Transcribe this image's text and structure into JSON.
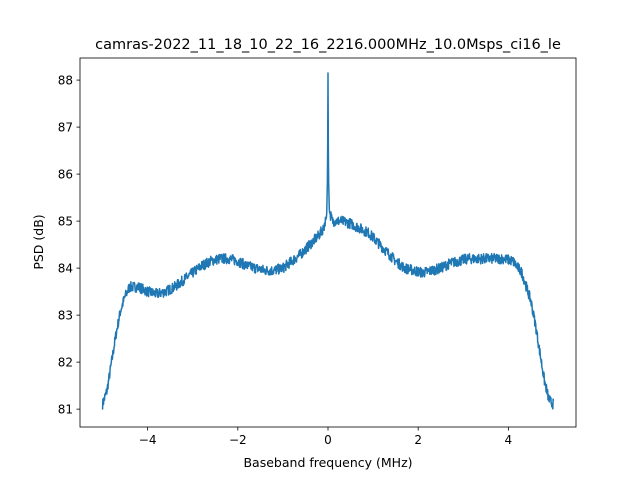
{
  "chart_data": {
    "type": "line",
    "title": "camras-2022_11_18_10_22_16_2216.000MHz_10.0Msps_ci16_le",
    "xlabel": "Baseband frequency (MHz)",
    "ylabel": "PSD (dB)",
    "xlim": [
      -5.5,
      5.5
    ],
    "ylim": [
      80.62,
      88.47
    ],
    "xticks": [
      -4,
      -2,
      0,
      2,
      4
    ],
    "xtick_labels": [
      "−4",
      "−2",
      "0",
      "2",
      "4"
    ],
    "yticks": [
      81,
      82,
      83,
      84,
      85,
      86,
      87,
      88
    ],
    "ytick_labels": [
      "81",
      "82",
      "83",
      "84",
      "85",
      "86",
      "87",
      "88"
    ],
    "grid": false,
    "series": [
      {
        "name": "PSD",
        "color": "#1f77b4",
        "x": [
          -5.0,
          -4.9,
          -4.8,
          -4.7,
          -4.6,
          -4.5,
          -4.4,
          -4.2,
          -4.0,
          -3.8,
          -3.6,
          -3.4,
          -3.2,
          -3.0,
          -2.8,
          -2.6,
          -2.4,
          -2.2,
          -2.0,
          -1.8,
          -1.6,
          -1.4,
          -1.2,
          -1.0,
          -0.8,
          -0.6,
          -0.4,
          -0.2,
          -0.1,
          -0.03,
          -0.01,
          0.0,
          0.01,
          0.03,
          0.1,
          0.3,
          0.5,
          0.7,
          0.9,
          1.1,
          1.3,
          1.5,
          1.7,
          1.9,
          2.1,
          2.3,
          2.5,
          2.7,
          2.9,
          3.1,
          3.3,
          3.5,
          3.7,
          3.9,
          4.1,
          4.3,
          4.5,
          4.6,
          4.7,
          4.8,
          4.9,
          5.0
        ],
        "y": [
          81.1,
          81.4,
          82.0,
          82.6,
          83.1,
          83.4,
          83.6,
          83.6,
          83.5,
          83.45,
          83.5,
          83.6,
          83.75,
          83.9,
          84.05,
          84.15,
          84.2,
          84.2,
          84.15,
          84.05,
          84.0,
          83.95,
          83.95,
          84.0,
          84.15,
          84.3,
          84.5,
          84.7,
          84.85,
          85.1,
          86.0,
          88.15,
          86.0,
          85.2,
          85.0,
          85.0,
          84.95,
          84.85,
          84.75,
          84.55,
          84.35,
          84.15,
          84.0,
          83.95,
          83.9,
          83.95,
          84.0,
          84.1,
          84.15,
          84.2,
          84.2,
          84.2,
          84.2,
          84.2,
          84.15,
          83.9,
          83.3,
          82.8,
          82.2,
          81.6,
          81.2,
          81.1
        ]
      }
    ]
  }
}
